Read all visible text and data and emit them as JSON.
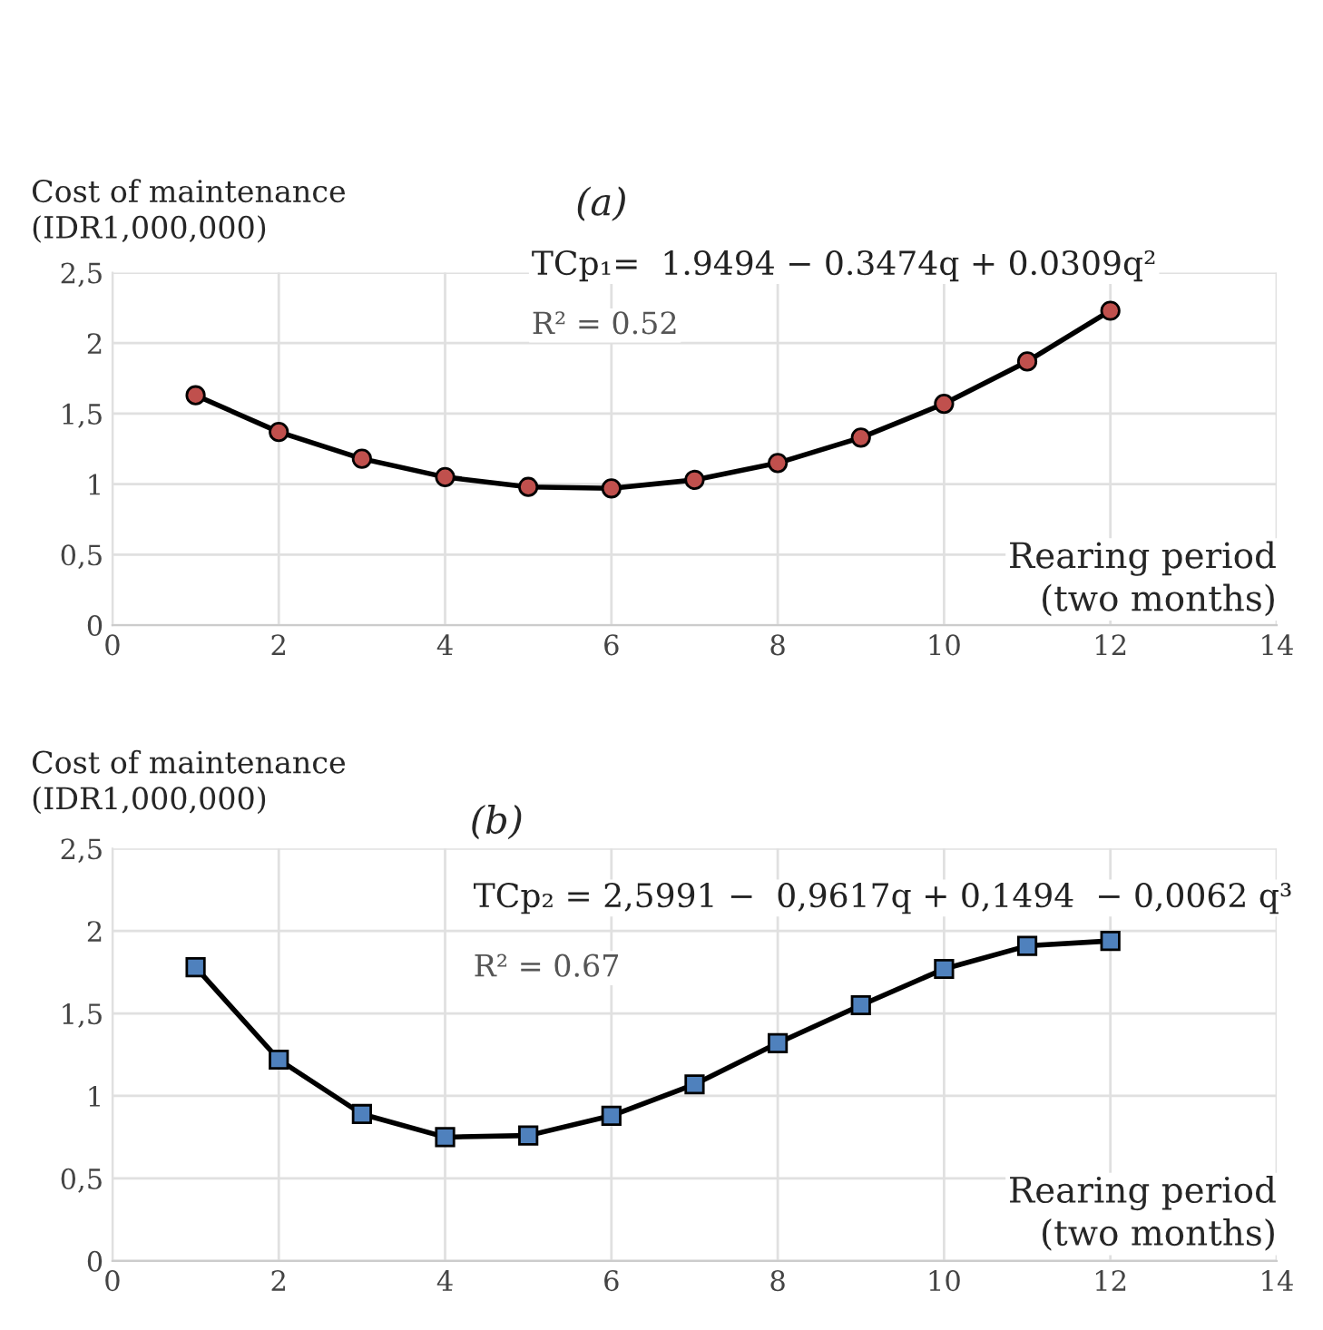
{
  "chart_data": [
    {
      "type": "line",
      "title": "(a)",
      "ylabel": "Cost of maintenance\n(IDR1,000,000)",
      "xlabel": "Rearing period\n(two months)",
      "annotations": [
        "TCp₁=  1.9494 − 0.3474q + 0.0309q²",
        "R² = 0.52"
      ],
      "x": [
        1,
        2,
        3,
        4,
        5,
        6,
        7,
        8,
        9,
        10,
        11,
        12
      ],
      "series": [
        {
          "color": "#c0504d",
          "values": [
            1.63,
            1.37,
            1.18,
            1.05,
            0.98,
            0.97,
            1.03,
            1.15,
            1.33,
            1.57,
            1.87,
            2.23
          ]
        }
      ],
      "xlim": [
        0,
        14
      ],
      "xticks": [
        0,
        2,
        4,
        6,
        8,
        10,
        12,
        14
      ],
      "ylim": [
        0,
        2.5
      ],
      "yticks": [
        0,
        {
          "value": 0.5,
          "label": "0,5"
        },
        1,
        {
          "value": 1.5,
          "label": "1,5"
        },
        2,
        {
          "value": 2.5,
          "label": "2,5"
        }
      ],
      "grid": true,
      "marker": "circle",
      "line_style": "solid"
    },
    {
      "type": "line",
      "title": "(b)",
      "ylabel": "Cost of maintenance\n(IDR1,000,000)",
      "xlabel": "Rearing period\n(two months)",
      "annotations": [
        "TCp₂ = 2,5991 −  0,9617q + 0,1494  − 0,0062 q³",
        "R² = 0.67"
      ],
      "x": [
        1,
        2,
        3,
        4,
        5,
        6,
        7,
        8,
        9,
        10,
        11,
        12
      ],
      "series": [
        {
          "color": "#4f81bd",
          "values": [
            1.78,
            1.22,
            0.89,
            0.75,
            0.76,
            0.88,
            1.07,
            1.32,
            1.55,
            1.77,
            1.91,
            1.94
          ]
        }
      ],
      "xlim": [
        0,
        14
      ],
      "xticks": [
        0,
        2,
        4,
        6,
        8,
        10,
        12,
        14
      ],
      "ylim": [
        0,
        2.5
      ],
      "yticks": [
        0,
        {
          "value": 0.5,
          "label": "0,5"
        },
        1,
        {
          "value": 1.5,
          "label": "1,5"
        },
        2,
        {
          "value": 2.5,
          "label": "2,5"
        }
      ],
      "grid": true,
      "marker": "square",
      "line_style": "solid"
    }
  ]
}
